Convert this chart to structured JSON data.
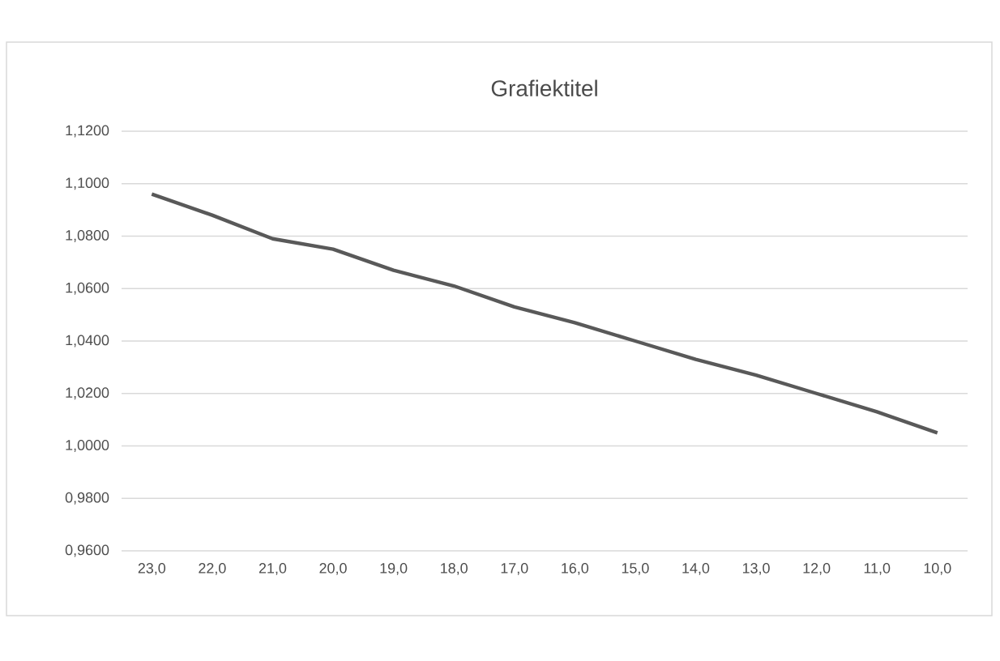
{
  "chart_data": {
    "type": "line",
    "title": "Grafiektitel",
    "categories": [
      "23,0",
      "22,0",
      "21,0",
      "20,0",
      "19,0",
      "18,0",
      "17,0",
      "16,0",
      "15,0",
      "14,0",
      "13,0",
      "12,0",
      "11,0",
      "10,0"
    ],
    "series": [
      {
        "color": "#595959",
        "values": [
          1.096,
          1.088,
          1.079,
          1.075,
          1.067,
          1.061,
          1.053,
          1.047,
          1.04,
          1.033,
          1.027,
          1.02,
          1.013,
          1.005
        ]
      }
    ],
    "ylim": [
      0.96,
      1.12
    ],
    "yticks": [
      {
        "value": 0.96,
        "label": "0,9600"
      },
      {
        "value": 0.98,
        "label": "0,9800"
      },
      {
        "value": 1.0,
        "label": "1,0000"
      },
      {
        "value": 1.02,
        "label": "1,0200"
      },
      {
        "value": 1.04,
        "label": "1,0400"
      },
      {
        "value": 1.06,
        "label": "1,0600"
      },
      {
        "value": 1.08,
        "label": "1,0800"
      },
      {
        "value": 1.1,
        "label": "1,1000"
      },
      {
        "value": 1.12,
        "label": "1,1200"
      }
    ],
    "grid": "y"
  }
}
